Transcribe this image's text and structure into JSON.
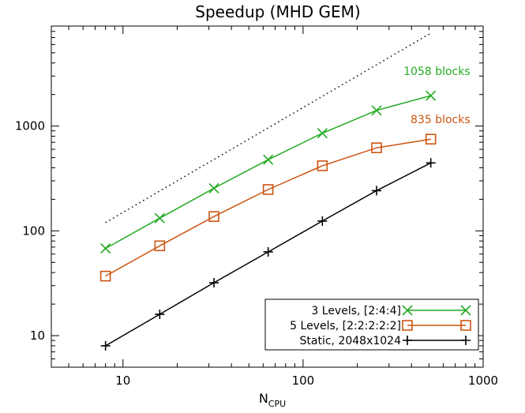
{
  "chart_data": {
    "type": "line",
    "title": "Speedup (MHD GEM)",
    "xlabel": "N",
    "xlabel_sub": "CPU",
    "ylabel": "",
    "xscale": "log",
    "yscale": "log",
    "xlim": [
      4,
      1000
    ],
    "ylim": [
      5,
      9000
    ],
    "xticks": [
      10,
      100,
      1000
    ],
    "xtick_labels": [
      "10",
      "100",
      "1000"
    ],
    "yticks": [
      10,
      100,
      1000
    ],
    "ytick_labels": [
      "10",
      "100",
      "1000"
    ],
    "grid": false,
    "legend_position": "bottom-right",
    "series": [
      {
        "name": "3 Levels, [2:4:4]",
        "color": "#22aa22",
        "marker": "x",
        "x": [
          8,
          16,
          32,
          64,
          128,
          256,
          512
        ],
        "y": [
          68,
          132,
          255,
          478,
          855,
          1410,
          1950
        ],
        "annotation": "1058 blocks"
      },
      {
        "name": "5 Levels, [2:2:2:2:2]",
        "color": "#cc5511",
        "marker": "square",
        "x": [
          8,
          16,
          32,
          64,
          128,
          256,
          512
        ],
        "y": [
          37,
          72,
          137,
          248,
          418,
          620,
          750
        ],
        "annotation": "835 blocks"
      },
      {
        "name": "Static, 2048x1024",
        "color": "#000000",
        "marker": "plus",
        "x": [
          8,
          16,
          32,
          64,
          128,
          256,
          512
        ],
        "y": [
          8,
          16,
          32,
          63,
          124,
          242,
          445
        ],
        "annotation": ""
      }
    ],
    "reference_line": {
      "style": "dotted",
      "color": "#000000",
      "x": [
        8,
        512
      ],
      "y": [
        120,
        7700
      ]
    }
  }
}
